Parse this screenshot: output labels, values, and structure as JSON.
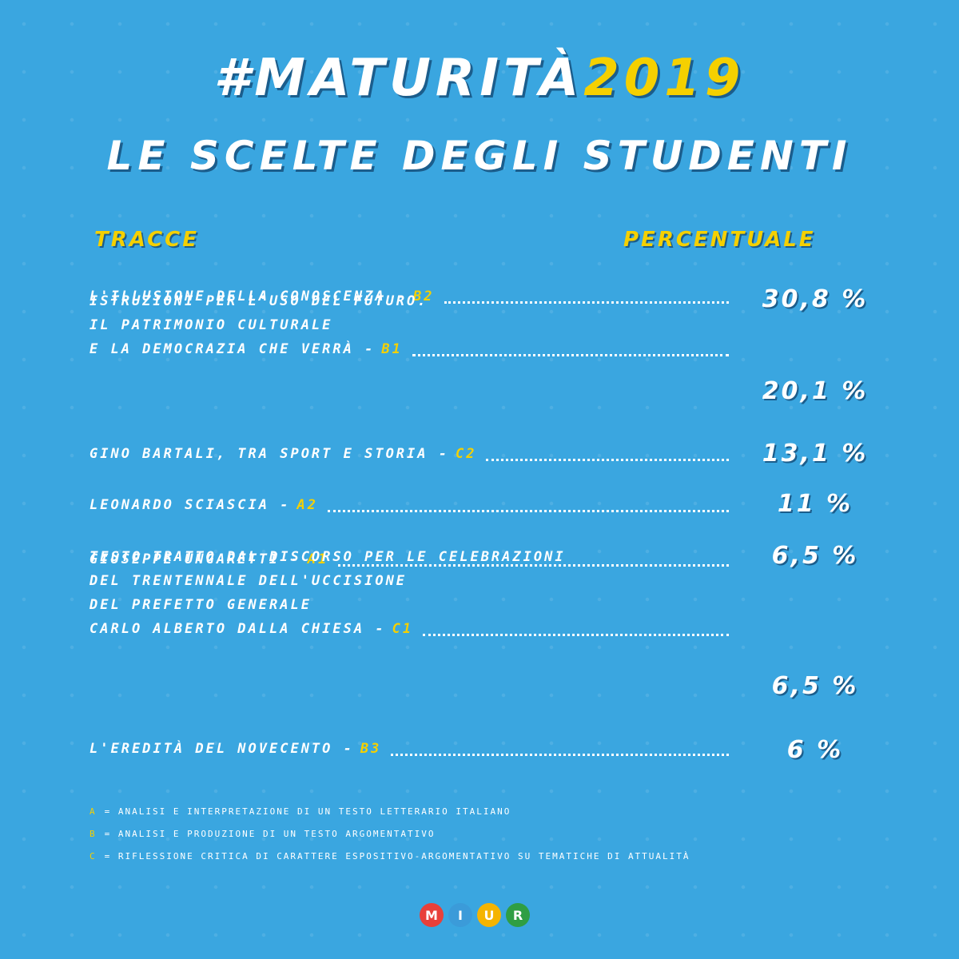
{
  "title": {
    "hash": "#MATURITÀ",
    "year": "2019"
  },
  "subtitle": "LE SCELTE DEGLI STUDENTI",
  "headers": {
    "left": "TRACCE",
    "right": "PERCENTUALE"
  },
  "rows": [
    {
      "lines": [],
      "last": "L'ILLUSIONE DELLA CONOSCENZA -",
      "code": "B2",
      "pct": "30,8 %"
    },
    {
      "lines": [
        "ISTRUZIONI PER L'USO DEL FUTURO.",
        "IL PATRIMONIO CULTURALE"
      ],
      "last": "E LA DEMOCRAZIA CHE VERRÀ -",
      "code": "B1",
      "pct": "20,1 %"
    },
    {
      "lines": [],
      "last": "GINO BARTALI, TRA SPORT E STORIA -",
      "code": "C2",
      "pct": "13,1 %"
    },
    {
      "lines": [],
      "last": "LEONARDO SCIASCIA -",
      "code": "A2",
      "pct": "11 %"
    },
    {
      "lines": [],
      "last": "GIUSEPPE UNGARETTI -",
      "code": "A1",
      "pct": "6,5 %"
    },
    {
      "lines": [
        "TESTO TRATTO DAL DISCORSO PER LE CELEBRAZIONI",
        "DEL TRENTENNALE DELL'UCCISIONE",
        "DEL PREFETTO GENERALE"
      ],
      "last": "CARLO ALBERTO DALLA CHIESA -",
      "code": "C1",
      "pct": "6,5 %"
    },
    {
      "lines": [],
      "last": "L'EREDITÀ DEL NOVECENTO -",
      "code": "B3",
      "pct": "6 %"
    }
  ],
  "footnotes": [
    {
      "code": "A",
      "text": "= ANALISI E INTERPRETAZIONE DI UN TESTO LETTERARIO ITALIANO"
    },
    {
      "code": "B",
      "text": "= ANALISI E PRODUZIONE DI UN TESTO ARGOMENTATIVO"
    },
    {
      "code": "C",
      "text": "= RIFLESSIONE CRITICA DI CARATTERE ESPOSITIVO-ARGOMENTATIVO SU TEMATICHE DI ATTUALITÀ"
    }
  ],
  "logo": {
    "letters": [
      "M",
      "I",
      "U",
      "R"
    ],
    "colors": [
      "#e8403a",
      "#3b9bd9",
      "#f5b400",
      "#2f9e44"
    ]
  }
}
